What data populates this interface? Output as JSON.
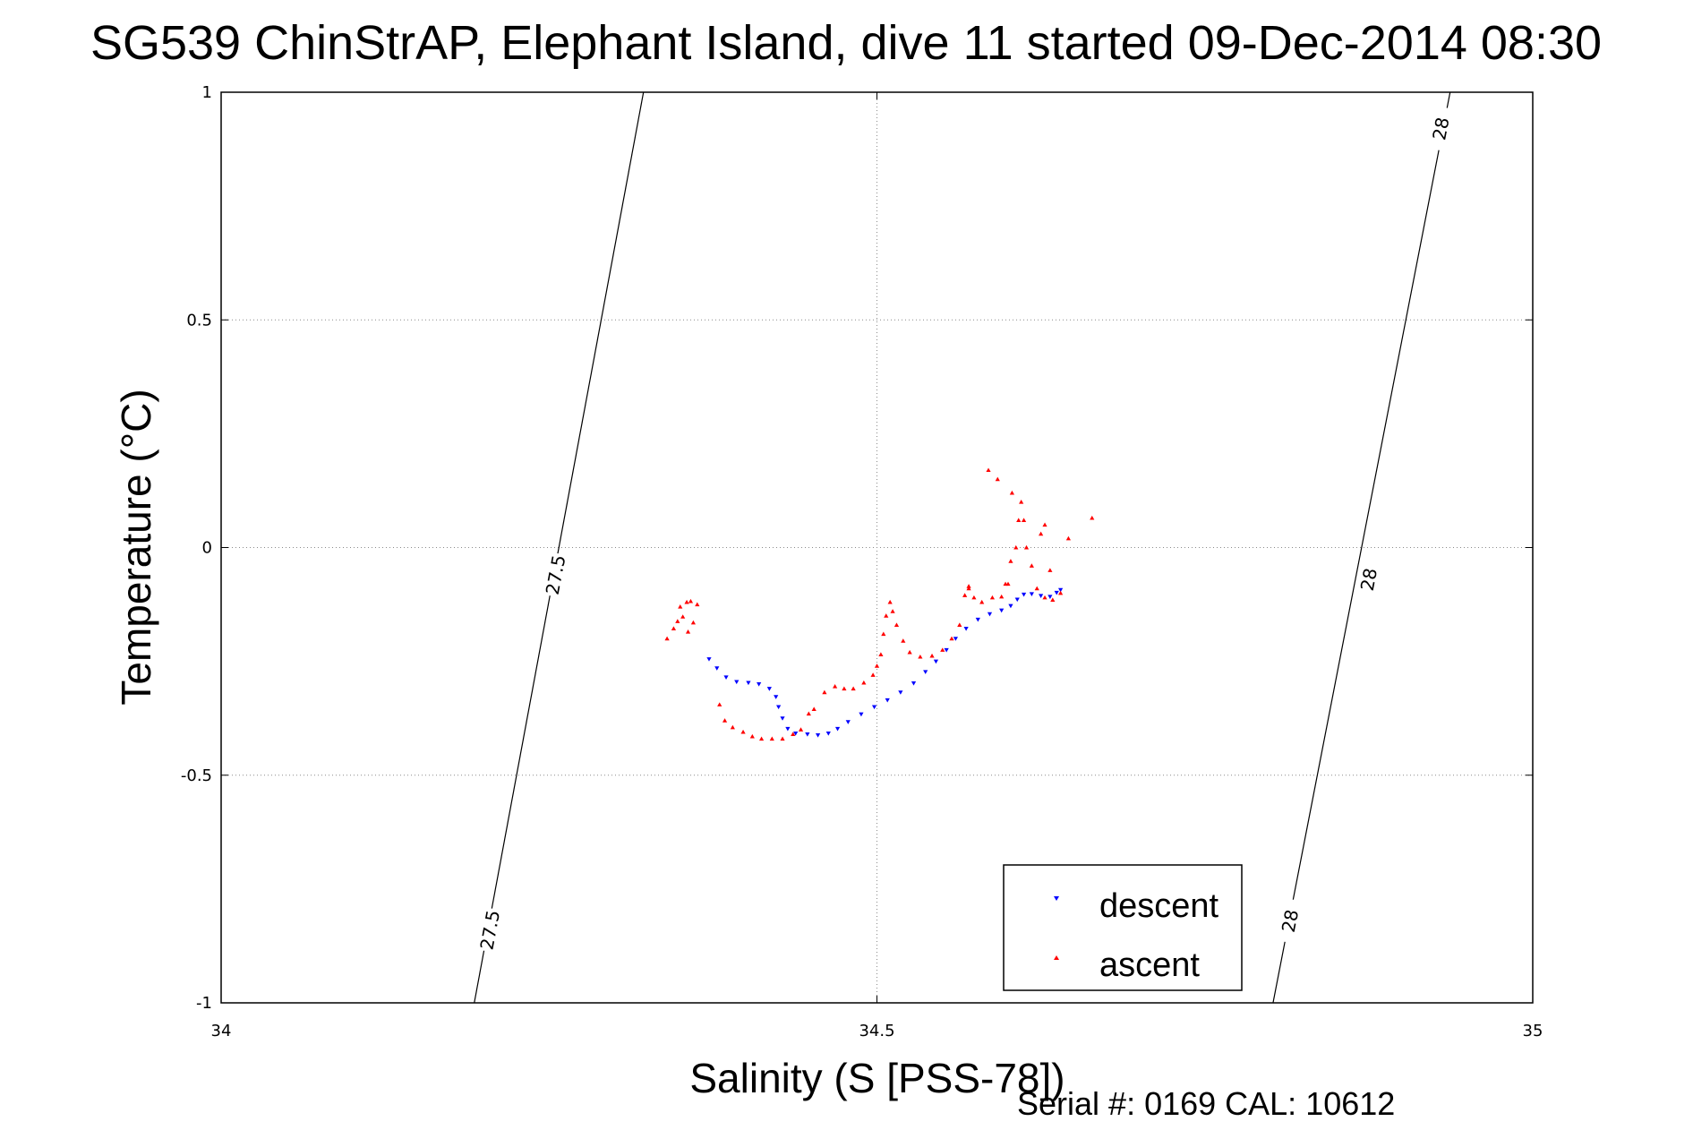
{
  "chart_data": {
    "type": "scatter",
    "title": "SG539 ChinStrAP, Elephant Island, dive 11 started 09-Dec-2014 08:30",
    "xlabel": "Salinity (S [PSS-78])",
    "ylabel": "Temperature (°C)",
    "footer": "Serial #: 0169 CAL: 10612",
    "xlim": [
      34,
      35
    ],
    "ylim": [
      -1,
      1
    ],
    "xticks": [
      34,
      34.5,
      35
    ],
    "xtick_labels": [
      "34",
      "34.5",
      "35"
    ],
    "yticks": [
      1,
      0.5,
      0,
      -0.5,
      -1
    ],
    "ytick_labels": [
      "1",
      "0.5",
      "0",
      "-0.5",
      "-1"
    ],
    "grid": true,
    "legend": {
      "position": "bottom-right",
      "entries": [
        "descent",
        "ascent"
      ]
    },
    "isopycnals": [
      {
        "label": "27.5",
        "points": [
          [
            34.193,
            -1
          ],
          [
            34.322,
            1
          ]
        ],
        "label_positions": [
          [
            34.205,
            -0.84
          ],
          [
            34.255,
            -0.06
          ]
        ]
      },
      {
        "label": "28",
        "points": [
          [
            34.802,
            -1
          ],
          [
            34.937,
            1
          ]
        ],
        "label_positions": [
          [
            34.815,
            -0.82
          ],
          [
            34.875,
            -0.07
          ],
          [
            34.93,
            0.92
          ]
        ]
      }
    ],
    "series": [
      {
        "name": "descent",
        "color": "#0000ff",
        "marker": "triangle-down",
        "points": [
          [
            34.372,
            -0.245
          ],
          [
            34.378,
            -0.265
          ],
          [
            34.385,
            -0.285
          ],
          [
            34.393,
            -0.295
          ],
          [
            34.402,
            -0.297
          ],
          [
            34.41,
            -0.3
          ],
          [
            34.418,
            -0.31
          ],
          [
            34.423,
            -0.328
          ],
          [
            34.425,
            -0.35
          ],
          [
            34.428,
            -0.375
          ],
          [
            34.432,
            -0.398
          ],
          [
            34.438,
            -0.408
          ],
          [
            34.447,
            -0.41
          ],
          [
            34.455,
            -0.412
          ],
          [
            34.463,
            -0.408
          ],
          [
            34.47,
            -0.398
          ],
          [
            34.478,
            -0.383
          ],
          [
            34.488,
            -0.366
          ],
          [
            34.498,
            -0.35
          ],
          [
            34.508,
            -0.335
          ],
          [
            34.518,
            -0.318
          ],
          [
            34.528,
            -0.298
          ],
          [
            34.537,
            -0.273
          ],
          [
            34.545,
            -0.25
          ],
          [
            34.553,
            -0.225
          ],
          [
            34.56,
            -0.2
          ],
          [
            34.568,
            -0.178
          ],
          [
            34.577,
            -0.158
          ],
          [
            34.586,
            -0.146
          ],
          [
            34.595,
            -0.138
          ],
          [
            34.602,
            -0.128
          ],
          [
            34.607,
            -0.114
          ],
          [
            34.612,
            -0.103
          ],
          [
            34.618,
            -0.102
          ],
          [
            34.625,
            -0.106
          ],
          [
            34.632,
            -0.108
          ],
          [
            34.637,
            -0.099
          ],
          [
            34.64,
            -0.093
          ]
        ]
      },
      {
        "name": "ascent",
        "color": "#ff0000",
        "marker": "triangle-up",
        "points": [
          [
            34.34,
            -0.2
          ],
          [
            34.345,
            -0.178
          ],
          [
            34.348,
            -0.162
          ],
          [
            34.352,
            -0.152
          ],
          [
            34.35,
            -0.13
          ],
          [
            34.355,
            -0.12
          ],
          [
            34.358,
            -0.118
          ],
          [
            34.363,
            -0.125
          ],
          [
            34.36,
            -0.165
          ],
          [
            34.356,
            -0.185
          ],
          [
            34.38,
            -0.345
          ],
          [
            34.384,
            -0.38
          ],
          [
            34.39,
            -0.395
          ],
          [
            34.398,
            -0.405
          ],
          [
            34.405,
            -0.415
          ],
          [
            34.412,
            -0.42
          ],
          [
            34.42,
            -0.42
          ],
          [
            34.428,
            -0.42
          ],
          [
            34.436,
            -0.41
          ],
          [
            34.442,
            -0.4
          ],
          [
            34.448,
            -0.365
          ],
          [
            34.452,
            -0.355
          ],
          [
            34.46,
            -0.318
          ],
          [
            34.468,
            -0.305
          ],
          [
            34.475,
            -0.31
          ],
          [
            34.482,
            -0.31
          ],
          [
            34.49,
            -0.297
          ],
          [
            34.497,
            -0.28
          ],
          [
            34.5,
            -0.26
          ],
          [
            34.503,
            -0.235
          ],
          [
            34.505,
            -0.19
          ],
          [
            34.507,
            -0.15
          ],
          [
            34.51,
            -0.12
          ],
          [
            34.512,
            -0.14
          ],
          [
            34.515,
            -0.17
          ],
          [
            34.52,
            -0.205
          ],
          [
            34.525,
            -0.23
          ],
          [
            34.533,
            -0.24
          ],
          [
            34.542,
            -0.238
          ],
          [
            34.55,
            -0.225
          ],
          [
            34.557,
            -0.2
          ],
          [
            34.563,
            -0.17
          ],
          [
            34.567,
            -0.105
          ],
          [
            34.57,
            -0.085
          ],
          [
            34.574,
            -0.11
          ],
          [
            34.58,
            -0.12
          ],
          [
            34.588,
            -0.11
          ],
          [
            34.595,
            -0.108
          ],
          [
            34.598,
            -0.08
          ],
          [
            34.602,
            -0.03
          ],
          [
            34.606,
            0.0
          ],
          [
            34.608,
            0.06
          ],
          [
            34.61,
            0.1
          ],
          [
            34.612,
            0.06
          ],
          [
            34.614,
            0.0
          ],
          [
            34.618,
            -0.04
          ],
          [
            34.622,
            -0.09
          ],
          [
            34.628,
            -0.11
          ],
          [
            34.634,
            -0.115
          ],
          [
            34.64,
            -0.1
          ],
          [
            34.628,
            0.05
          ],
          [
            34.632,
            -0.05
          ],
          [
            34.585,
            0.17
          ],
          [
            34.592,
            0.15
          ],
          [
            34.603,
            0.12
          ],
          [
            34.625,
            0.03
          ],
          [
            34.646,
            0.02
          ],
          [
            34.664,
            0.065
          ],
          [
            34.6,
            -0.08
          ],
          [
            34.57,
            -0.09
          ]
        ]
      }
    ]
  }
}
